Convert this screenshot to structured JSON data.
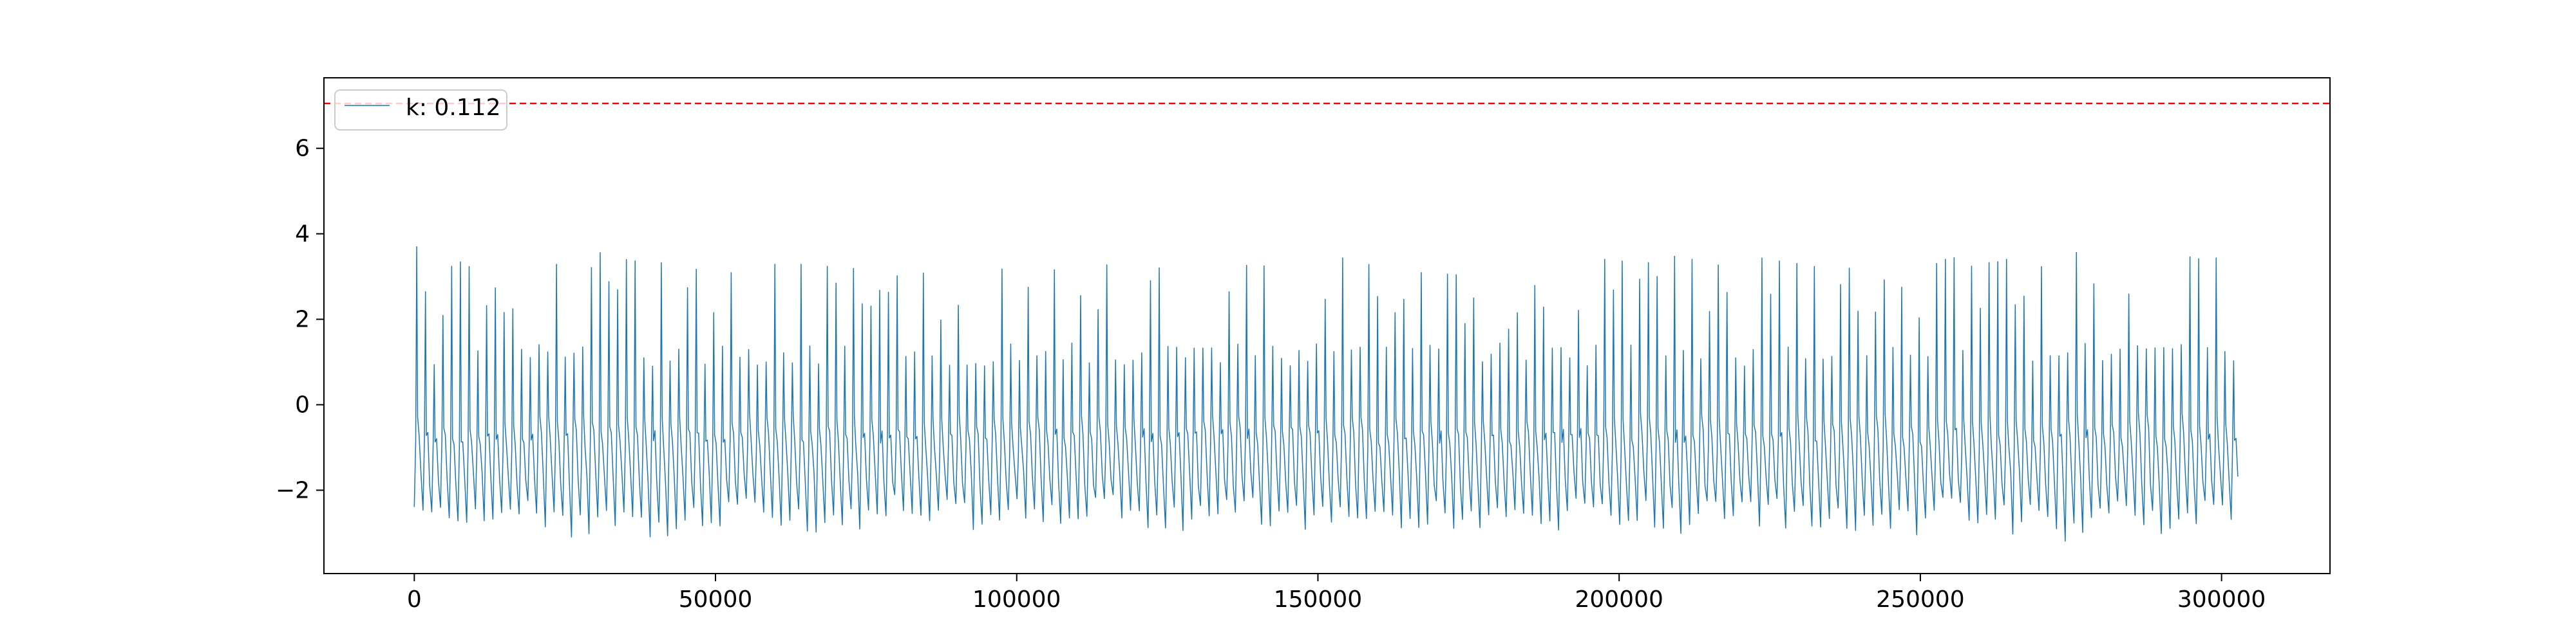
{
  "chart_data": {
    "type": "line",
    "title": "",
    "xlabel": "",
    "ylabel": "",
    "xlim": [
      -15000,
      318000
    ],
    "ylim": [
      -3.95,
      7.65
    ],
    "x_ticks": [
      {
        "value": 0,
        "label": "0"
      },
      {
        "value": 50000,
        "label": "50000"
      },
      {
        "value": 100000,
        "label": "100000"
      },
      {
        "value": 150000,
        "label": "150000"
      },
      {
        "value": 200000,
        "label": "200000"
      },
      {
        "value": 250000,
        "label": "250000"
      },
      {
        "value": 300000,
        "label": "300000"
      }
    ],
    "y_ticks": [
      {
        "value": -2,
        "label": "−2"
      },
      {
        "value": 0,
        "label": "0"
      },
      {
        "value": 2,
        "label": "2"
      },
      {
        "value": 4,
        "label": "4"
      },
      {
        "value": 6,
        "label": "6"
      }
    ],
    "grid": false,
    "legend": {
      "placement": "upper-left",
      "entries": [
        {
          "label": "k: 0.112",
          "color": "#1f77b4"
        }
      ]
    },
    "threshold_line": {
      "y": 7.05,
      "color": "#ff0000",
      "style": "dashed"
    },
    "series": [
      {
        "name": "k: 0.112",
        "color": "#1f77b4",
        "x_start": 0,
        "x_end": 303000,
        "approx_cycle_length": 1450,
        "y_range": {
          "min": -3.4,
          "max": 3.8
        },
        "envelope_top": [
          [
            0,
            3.7
          ],
          [
            5000,
            3.3
          ],
          [
            10000,
            3.4
          ],
          [
            15000,
            3.4
          ],
          [
            20000,
            3.3
          ],
          [
            25000,
            3.5
          ],
          [
            29000,
            3.8
          ],
          [
            35000,
            3.5
          ],
          [
            40000,
            3.4
          ],
          [
            45000,
            3.3
          ],
          [
            50000,
            3.1
          ],
          [
            55000,
            3.3
          ],
          [
            60000,
            3.4
          ],
          [
            65000,
            3.3
          ],
          [
            70000,
            3.4
          ],
          [
            75000,
            3.3
          ],
          [
            80000,
            3.1
          ],
          [
            85000,
            3.2
          ],
          [
            90000,
            3.0
          ],
          [
            95000,
            3.2
          ],
          [
            100000,
            3.3
          ],
          [
            105000,
            3.2
          ],
          [
            110000,
            3.4
          ],
          [
            115000,
            3.3
          ],
          [
            120000,
            3.5
          ],
          [
            125000,
            3.3
          ],
          [
            130000,
            3.3
          ],
          [
            135000,
            3.3
          ],
          [
            140000,
            3.4
          ],
          [
            145000,
            3.1
          ],
          [
            150000,
            3.3
          ],
          [
            155000,
            3.5
          ],
          [
            160000,
            3.4
          ],
          [
            165000,
            3.3
          ],
          [
            170000,
            3.1
          ],
          [
            175000,
            3.2
          ],
          [
            180000,
            1.5
          ],
          [
            185000,
            2.9
          ],
          [
            190000,
            3.5
          ],
          [
            195000,
            3.5
          ],
          [
            200000,
            3.4
          ],
          [
            205000,
            3.5
          ],
          [
            210000,
            3.6
          ],
          [
            215000,
            3.4
          ],
          [
            220000,
            3.6
          ],
          [
            225000,
            3.4
          ],
          [
            230000,
            3.3
          ],
          [
            235000,
            3.4
          ],
          [
            240000,
            3.3
          ],
          [
            245000,
            3.5
          ],
          [
            250000,
            3.3
          ],
          [
            255000,
            3.5
          ],
          [
            260000,
            3.3
          ],
          [
            265000,
            3.5
          ],
          [
            270000,
            3.3
          ],
          [
            276000,
            3.7
          ],
          [
            280000,
            3.4
          ],
          [
            285000,
            3.5
          ],
          [
            290000,
            3.3
          ],
          [
            295000,
            3.6
          ],
          [
            303000,
            3.3
          ]
        ],
        "envelope_bottom": [
          [
            0,
            -2.8
          ],
          [
            5000,
            -3.2
          ],
          [
            10000,
            -2.9
          ],
          [
            15000,
            -3.1
          ],
          [
            20000,
            -2.8
          ],
          [
            25000,
            -3.2
          ],
          [
            29000,
            -3.4
          ],
          [
            35000,
            -3.0
          ],
          [
            40000,
            -3.2
          ],
          [
            45000,
            -2.9
          ],
          [
            50000,
            -3.1
          ],
          [
            55000,
            -2.9
          ],
          [
            60000,
            -3.0
          ],
          [
            65000,
            -3.2
          ],
          [
            70000,
            -2.9
          ],
          [
            75000,
            -3.1
          ],
          [
            80000,
            -2.8
          ],
          [
            85000,
            -3.0
          ],
          [
            90000,
            -2.9
          ],
          [
            95000,
            -3.3
          ],
          [
            100000,
            -2.8
          ],
          [
            105000,
            -2.9
          ],
          [
            110000,
            -3.1
          ],
          [
            115000,
            -2.8
          ],
          [
            120000,
            -3.0
          ],
          [
            125000,
            -2.9
          ],
          [
            130000,
            -3.0
          ],
          [
            135000,
            -2.9
          ],
          [
            140000,
            -2.8
          ],
          [
            145000,
            -3.1
          ],
          [
            150000,
            -2.9
          ],
          [
            155000,
            -2.8
          ],
          [
            160000,
            -3.0
          ],
          [
            165000,
            -3.1
          ],
          [
            170000,
            -2.8
          ],
          [
            175000,
            -3.0
          ],
          [
            180000,
            -2.9
          ],
          [
            185000,
            -2.9
          ],
          [
            190000,
            -3.1
          ],
          [
            195000,
            -2.8
          ],
          [
            200000,
            -3.0
          ],
          [
            205000,
            -2.9
          ],
          [
            210000,
            -3.2
          ],
          [
            215000,
            -2.9
          ],
          [
            220000,
            -3.0
          ],
          [
            225000,
            -2.8
          ],
          [
            230000,
            -3.1
          ],
          [
            235000,
            -2.9
          ],
          [
            240000,
            -3.0
          ],
          [
            245000,
            -2.9
          ],
          [
            250000,
            -3.1
          ],
          [
            255000,
            -2.8
          ],
          [
            260000,
            -3.0
          ],
          [
            265000,
            -3.1
          ],
          [
            270000,
            -2.9
          ],
          [
            276000,
            -3.4
          ],
          [
            280000,
            -3.0
          ],
          [
            285000,
            -2.9
          ],
          [
            290000,
            -3.1
          ],
          [
            295000,
            -2.9
          ],
          [
            303000,
            -2.9
          ]
        ]
      }
    ]
  }
}
